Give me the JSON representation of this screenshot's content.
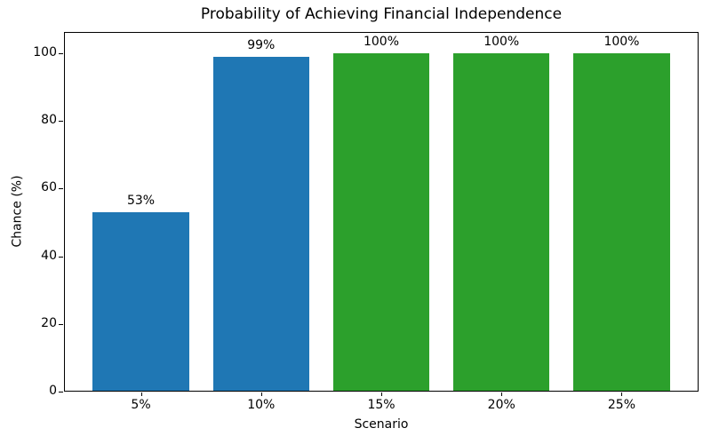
{
  "chart_data": {
    "type": "bar",
    "title": "Probability of Achieving Financial Independence",
    "xlabel": "Scenario",
    "ylabel": "Chance (%)",
    "categories": [
      "5%",
      "10%",
      "15%",
      "20%",
      "25%"
    ],
    "values": [
      53,
      99,
      100,
      100,
      100
    ],
    "value_labels": [
      "53%",
      "99%",
      "100%",
      "100%",
      "100%"
    ],
    "bar_colors": [
      "#1f77b4",
      "#1f77b4",
      "#2ca02c",
      "#2ca02c",
      "#2ca02c"
    ],
    "yticks": [
      0,
      20,
      40,
      60,
      80,
      100
    ],
    "ylim": [
      0,
      106.25
    ],
    "xlim": [
      -0.64,
      4.64
    ],
    "bar_width": 0.8,
    "grid": false,
    "legend_position": "none",
    "background_color": "#ffffff",
    "spine_color": "#000000"
  }
}
